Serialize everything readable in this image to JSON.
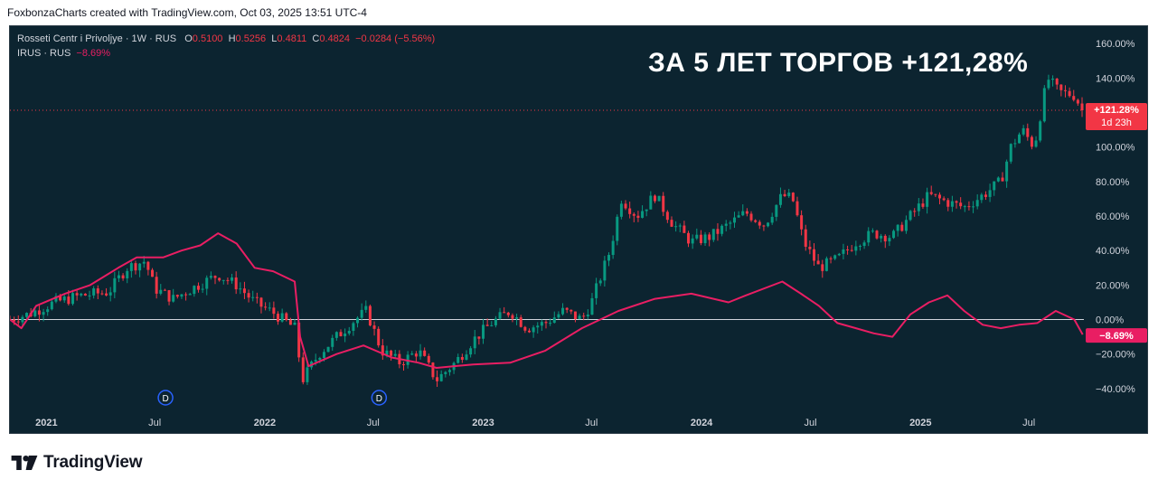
{
  "header": {
    "attribution": "FoxbonzaCharts created with TradingView.com, Oct 03, 2025 13:51 UTC-4"
  },
  "legend": {
    "main_symbol": "Rosseti Centr i Privoljye · 1W · RUS",
    "o_label": "O",
    "o_value": "0.5100",
    "h_label": "H",
    "h_value": "0.5256",
    "l_label": "L",
    "l_value": "0.4811",
    "c_label": "C",
    "c_value": "0.4824",
    "change": "−0.0284 (−5.56%)",
    "compare_symbol": "IRUS · RUS",
    "compare_change": "−8.69%"
  },
  "headline": "ЗА 5 ЛЕТ ТОРГОВ +121,28%",
  "badges": {
    "main_value": "+121.28%",
    "main_countdown": "1d 23h",
    "compare_value": "−8.69%"
  },
  "dividend_marker": "D",
  "footer": {
    "brand": "TradingView"
  },
  "colors": {
    "background": "#0c2430",
    "up": "#089981",
    "down": "#f23645",
    "compare_line": "#e91e63",
    "zero_line": "#d1d4dc"
  },
  "chart_data": {
    "type": "line",
    "x_axis": {
      "range": [
        "2020-11",
        "2025-10"
      ],
      "ticks": [
        {
          "label": "2021",
          "date": "2021-01-01"
        },
        {
          "label": "Jul",
          "date": "2021-07-01"
        },
        {
          "label": "2022",
          "date": "2022-01-01"
        },
        {
          "label": "Jul",
          "date": "2022-07-01"
        },
        {
          "label": "2023",
          "date": "2023-01-01"
        },
        {
          "label": "Jul",
          "date": "2023-07-01"
        },
        {
          "label": "2024",
          "date": "2024-01-01"
        },
        {
          "label": "Jul",
          "date": "2024-07-01"
        },
        {
          "label": "2025",
          "date": "2025-01-01"
        },
        {
          "label": "Jul",
          "date": "2025-07-01"
        }
      ]
    },
    "y_axis": {
      "unit": "%",
      "range": [
        -50,
        170
      ],
      "ticks": [
        {
          "label": "160.00%",
          "value": 160
        },
        {
          "label": "140.00%",
          "value": 140
        },
        {
          "label": "100.00%",
          "value": 100
        },
        {
          "label": "80.00%",
          "value": 80
        },
        {
          "label": "60.00%",
          "value": 60
        },
        {
          "label": "40.00%",
          "value": 40
        },
        {
          "label": "20.00%",
          "value": 20
        },
        {
          "label": "0.00%",
          "value": 0
        },
        {
          "label": "−20.00%",
          "value": -20
        },
        {
          "label": "−40.00%",
          "value": -40
        }
      ]
    },
    "dividend_markers": [
      {
        "date": "2021-07-19"
      },
      {
        "date": "2022-07-11"
      }
    ],
    "series": [
      {
        "name": "Rosseti Centr i Privoljye · 1W · RUS",
        "kind": "candlestick",
        "last_value": 121.28,
        "points": [
          {
            "date": "2020-11-01",
            "value": 0
          },
          {
            "date": "2020-12-01",
            "value": 3
          },
          {
            "date": "2021-01-15",
            "value": 10
          },
          {
            "date": "2021-03-01",
            "value": 14
          },
          {
            "date": "2021-04-15",
            "value": 16
          },
          {
            "date": "2021-05-15",
            "value": 30
          },
          {
            "date": "2021-06-15",
            "value": 34
          },
          {
            "date": "2021-07-01",
            "value": 18
          },
          {
            "date": "2021-08-01",
            "value": 12
          },
          {
            "date": "2021-09-01",
            "value": 18
          },
          {
            "date": "2021-10-15",
            "value": 26
          },
          {
            "date": "2021-11-15",
            "value": 20
          },
          {
            "date": "2021-12-15",
            "value": 10
          },
          {
            "date": "2022-01-15",
            "value": 4
          },
          {
            "date": "2022-02-20",
            "value": -5
          },
          {
            "date": "2022-03-05",
            "value": -35
          },
          {
            "date": "2022-04-01",
            "value": -20
          },
          {
            "date": "2022-05-01",
            "value": -10
          },
          {
            "date": "2022-06-01",
            "value": 0
          },
          {
            "date": "2022-06-20",
            "value": 5
          },
          {
            "date": "2022-07-15",
            "value": -18
          },
          {
            "date": "2022-08-15",
            "value": -25
          },
          {
            "date": "2022-09-15",
            "value": -18
          },
          {
            "date": "2022-10-15",
            "value": -35
          },
          {
            "date": "2022-11-15",
            "value": -25
          },
          {
            "date": "2022-12-15",
            "value": -12
          },
          {
            "date": "2023-01-15",
            "value": -2
          },
          {
            "date": "2023-02-15",
            "value": 5
          },
          {
            "date": "2023-03-15",
            "value": -5
          },
          {
            "date": "2023-04-15",
            "value": -2
          },
          {
            "date": "2023-05-15",
            "value": 5
          },
          {
            "date": "2023-06-15",
            "value": 0
          },
          {
            "date": "2023-07-01",
            "value": 10
          },
          {
            "date": "2023-08-01",
            "value": 40
          },
          {
            "date": "2023-08-20",
            "value": 70
          },
          {
            "date": "2023-09-15",
            "value": 60
          },
          {
            "date": "2023-10-15",
            "value": 72
          },
          {
            "date": "2023-11-15",
            "value": 55
          },
          {
            "date": "2023-12-15",
            "value": 45
          },
          {
            "date": "2024-01-15",
            "value": 48
          },
          {
            "date": "2024-02-15",
            "value": 55
          },
          {
            "date": "2024-03-15",
            "value": 62
          },
          {
            "date": "2024-04-15",
            "value": 55
          },
          {
            "date": "2024-05-15",
            "value": 72
          },
          {
            "date": "2024-06-01",
            "value": 70
          },
          {
            "date": "2024-06-20",
            "value": 45
          },
          {
            "date": "2024-07-15",
            "value": 30
          },
          {
            "date": "2024-08-15",
            "value": 35
          },
          {
            "date": "2024-09-15",
            "value": 45
          },
          {
            "date": "2024-10-15",
            "value": 50
          },
          {
            "date": "2024-11-15",
            "value": 48
          },
          {
            "date": "2024-12-15",
            "value": 60
          },
          {
            "date": "2025-01-15",
            "value": 72
          },
          {
            "date": "2025-02-15",
            "value": 68
          },
          {
            "date": "2025-03-15",
            "value": 65
          },
          {
            "date": "2025-04-15",
            "value": 72
          },
          {
            "date": "2025-05-15",
            "value": 80
          },
          {
            "date": "2025-06-01",
            "value": 100
          },
          {
            "date": "2025-06-20",
            "value": 110
          },
          {
            "date": "2025-07-10",
            "value": 100
          },
          {
            "date": "2025-08-01",
            "value": 140
          },
          {
            "date": "2025-08-20",
            "value": 132
          },
          {
            "date": "2025-09-15",
            "value": 130
          },
          {
            "date": "2025-09-29",
            "value": 121.28
          }
        ]
      },
      {
        "name": "IRUS · RUS",
        "kind": "line",
        "last_value": -8.69,
        "points": [
          {
            "date": "2020-11-01",
            "value": 0
          },
          {
            "date": "2020-11-20",
            "value": -5
          },
          {
            "date": "2020-12-15",
            "value": 8
          },
          {
            "date": "2021-02-01",
            "value": 15
          },
          {
            "date": "2021-03-15",
            "value": 20
          },
          {
            "date": "2021-05-01",
            "value": 30
          },
          {
            "date": "2021-06-01",
            "value": 36
          },
          {
            "date": "2021-07-15",
            "value": 36
          },
          {
            "date": "2021-08-15",
            "value": 40
          },
          {
            "date": "2021-09-15",
            "value": 43
          },
          {
            "date": "2021-10-15",
            "value": 50
          },
          {
            "date": "2021-11-15",
            "value": 44
          },
          {
            "date": "2021-12-15",
            "value": 30
          },
          {
            "date": "2022-01-15",
            "value": 28
          },
          {
            "date": "2022-02-20",
            "value": 22
          },
          {
            "date": "2022-03-01",
            "value": -10
          },
          {
            "date": "2022-03-15",
            "value": -27
          },
          {
            "date": "2022-05-01",
            "value": -20
          },
          {
            "date": "2022-06-15",
            "value": -15
          },
          {
            "date": "2022-08-01",
            "value": -22
          },
          {
            "date": "2022-09-15",
            "value": -25
          },
          {
            "date": "2022-10-15",
            "value": -28
          },
          {
            "date": "2022-12-15",
            "value": -26
          },
          {
            "date": "2023-02-15",
            "value": -25
          },
          {
            "date": "2023-04-15",
            "value": -18
          },
          {
            "date": "2023-06-15",
            "value": -5
          },
          {
            "date": "2023-08-15",
            "value": 5
          },
          {
            "date": "2023-10-15",
            "value": 12
          },
          {
            "date": "2023-12-15",
            "value": 15
          },
          {
            "date": "2024-02-15",
            "value": 10
          },
          {
            "date": "2024-03-15",
            "value": 14
          },
          {
            "date": "2024-05-15",
            "value": 22
          },
          {
            "date": "2024-06-15",
            "value": 15
          },
          {
            "date": "2024-07-15",
            "value": 8
          },
          {
            "date": "2024-08-15",
            "value": -2
          },
          {
            "date": "2024-09-15",
            "value": -5
          },
          {
            "date": "2024-10-15",
            "value": -8
          },
          {
            "date": "2024-11-15",
            "value": -10
          },
          {
            "date": "2024-12-15",
            "value": 3
          },
          {
            "date": "2025-01-15",
            "value": 10
          },
          {
            "date": "2025-02-15",
            "value": 14
          },
          {
            "date": "2025-03-15",
            "value": 5
          },
          {
            "date": "2025-04-15",
            "value": -3
          },
          {
            "date": "2025-05-15",
            "value": -5
          },
          {
            "date": "2025-06-15",
            "value": -3
          },
          {
            "date": "2025-07-15",
            "value": -2
          },
          {
            "date": "2025-08-15",
            "value": 5
          },
          {
            "date": "2025-09-15",
            "value": 0
          },
          {
            "date": "2025-09-29",
            "value": -8.69
          }
        ]
      }
    ]
  }
}
